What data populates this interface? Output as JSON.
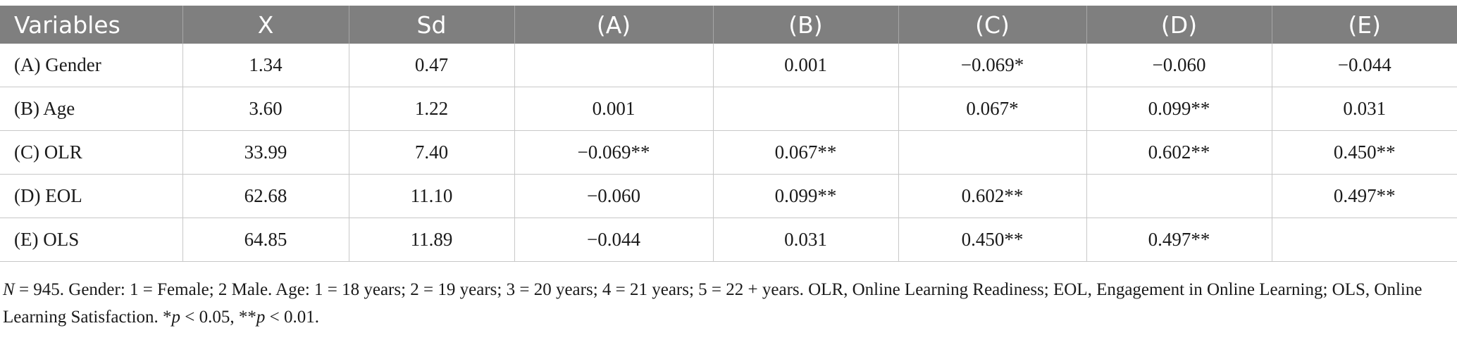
{
  "table": {
    "headers": [
      "Variables",
      "X",
      "Sd",
      "(A)",
      "(B)",
      "(C)",
      "(D)",
      "(E)"
    ],
    "rows": [
      [
        "(A) Gender",
        "1.34",
        "0.47",
        "",
        "0.001",
        "−0.069*",
        "−0.060",
        "−0.044"
      ],
      [
        "(B) Age",
        "3.60",
        "1.22",
        "0.001",
        "",
        "0.067*",
        "0.099**",
        "0.031"
      ],
      [
        "(C) OLR",
        "33.99",
        "7.40",
        "−0.069**",
        "0.067**",
        "",
        "0.602**",
        "0.450**"
      ],
      [
        "(D) EOL",
        "62.68",
        "11.10",
        "−0.060",
        "0.099**",
        "0.602**",
        "",
        "0.497**"
      ],
      [
        "(E) OLS",
        "64.85",
        "11.89",
        "−0.044",
        "0.031",
        "0.450**",
        "0.497**",
        ""
      ]
    ]
  },
  "note": {
    "n_symbol": "N",
    "part1": " = 945. Gender: 1 = Female; 2 Male. Age: 1 = 18 years; 2 = 19 years; 3 = 20 years; 4 = 21 years; 5 = 22 + years. OLR, Online Learning Readiness; EOL, Engagement in Online Learning; OLS, Online Learning Satisfaction. *",
    "p1": "p",
    "part2": " < 0.05, **",
    "p2": "p",
    "part3": " < 0.01."
  },
  "colors": {
    "header_bg": "#7f7f7f",
    "header_text": "#ffffff",
    "grid": "#c8c8c8"
  }
}
